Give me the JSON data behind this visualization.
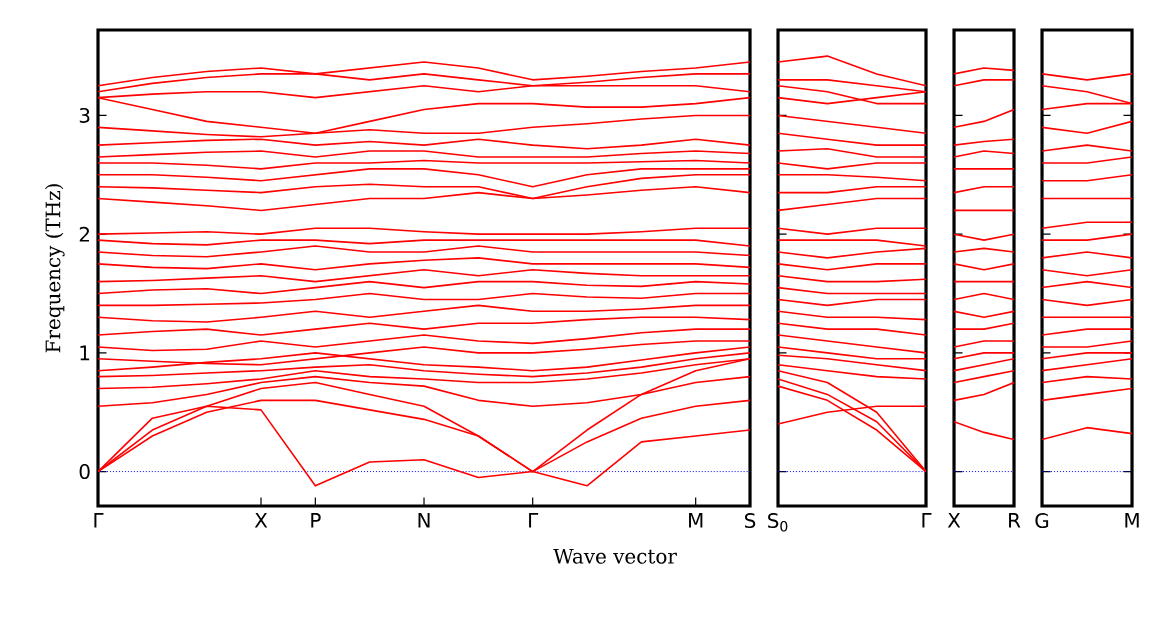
{
  "chart_data": [
    {
      "type": "line",
      "ylabel": "Frequency (THz)",
      "xlabel": "Wave vector",
      "grid": false,
      "line_style": "solid",
      "categories": [
        "Γ",
        null,
        null,
        "X",
        "P",
        null,
        "N",
        null,
        "Γ",
        null,
        null,
        "M",
        "S"
      ],
      "ylim": [
        -0.29,
        3.72
      ],
      "yticks": [
        0,
        1,
        2,
        3
      ],
      "ref_lines": [
        {
          "axis": "y",
          "value": 0,
          "color": "#0000ff",
          "line_style": "dotted"
        }
      ],
      "series": [
        {
          "color": "#ff0000",
          "values": [
            0,
            0.45,
            0.55,
            0.52,
            -0.12,
            0.08,
            0.1,
            -0.05,
            0,
            -0.12,
            0.25,
            0.3,
            0.35
          ]
        },
        {
          "color": "#ff0000",
          "values": [
            0,
            0.3,
            0.5,
            0.6,
            0.6,
            0.52,
            0.44,
            0.3,
            0,
            0.25,
            0.45,
            0.55,
            0.6
          ]
        },
        {
          "color": "#ff0000",
          "values": [
            0,
            0.35,
            0.55,
            0.7,
            0.75,
            0.65,
            0.55,
            0.3,
            0,
            0.35,
            0.65,
            0.85,
            0.95
          ]
        },
        {
          "color": "#ff0000",
          "values": [
            0.55,
            0.58,
            0.65,
            0.75,
            0.8,
            0.75,
            0.72,
            0.6,
            0.55,
            0.58,
            0.65,
            0.75,
            0.8
          ]
        },
        {
          "color": "#ff0000",
          "values": [
            0.7,
            0.71,
            0.74,
            0.78,
            0.85,
            0.8,
            0.78,
            0.75,
            0.75,
            0.78,
            0.83,
            0.9,
            0.95
          ]
        },
        {
          "color": "#ff0000",
          "values": [
            0.8,
            0.81,
            0.83,
            0.85,
            0.88,
            0.9,
            0.85,
            0.82,
            0.8,
            0.83,
            0.88,
            0.95,
            1.0
          ]
        },
        {
          "color": "#ff0000",
          "values": [
            0.85,
            0.88,
            0.92,
            0.95,
            1.0,
            0.95,
            0.9,
            0.88,
            0.85,
            0.88,
            0.94,
            1.0,
            1.05
          ]
        },
        {
          "color": "#ff0000",
          "values": [
            0.95,
            0.93,
            0.91,
            0.9,
            0.95,
            1.0,
            1.05,
            1.0,
            1.0,
            1.03,
            1.07,
            1.1,
            1.1
          ]
        },
        {
          "color": "#ff0000",
          "values": [
            1.05,
            1.02,
            1.03,
            1.1,
            1.05,
            1.1,
            1.15,
            1.1,
            1.08,
            1.12,
            1.17,
            1.2,
            1.2
          ]
        },
        {
          "color": "#ff0000",
          "values": [
            1.15,
            1.18,
            1.2,
            1.15,
            1.2,
            1.25,
            1.2,
            1.25,
            1.25,
            1.28,
            1.3,
            1.3,
            1.28
          ]
        },
        {
          "color": "#ff0000",
          "values": [
            1.3,
            1.27,
            1.26,
            1.3,
            1.35,
            1.3,
            1.35,
            1.4,
            1.35,
            1.35,
            1.37,
            1.4,
            1.4
          ]
        },
        {
          "color": "#ff0000",
          "values": [
            1.4,
            1.4,
            1.41,
            1.42,
            1.45,
            1.5,
            1.45,
            1.45,
            1.5,
            1.47,
            1.46,
            1.5,
            1.5
          ]
        },
        {
          "color": "#ff0000",
          "values": [
            1.5,
            1.53,
            1.54,
            1.5,
            1.55,
            1.6,
            1.55,
            1.6,
            1.6,
            1.57,
            1.56,
            1.6,
            1.58
          ]
        },
        {
          "color": "#ff0000",
          "values": [
            1.6,
            1.61,
            1.63,
            1.65,
            1.6,
            1.65,
            1.7,
            1.65,
            1.7,
            1.67,
            1.65,
            1.65,
            1.65
          ]
        },
        {
          "color": "#ff0000",
          "values": [
            1.75,
            1.72,
            1.71,
            1.75,
            1.7,
            1.75,
            1.78,
            1.8,
            1.75,
            1.75,
            1.75,
            1.75,
            1.72
          ]
        },
        {
          "color": "#ff0000",
          "values": [
            1.85,
            1.82,
            1.81,
            1.85,
            1.9,
            1.85,
            1.85,
            1.9,
            1.85,
            1.85,
            1.85,
            1.85,
            1.82
          ]
        },
        {
          "color": "#ff0000",
          "values": [
            1.95,
            1.92,
            1.91,
            1.95,
            1.95,
            1.92,
            1.95,
            1.95,
            1.95,
            1.95,
            1.95,
            1.95,
            1.9
          ]
        },
        {
          "color": "#ff0000",
          "values": [
            2.0,
            2.01,
            2.02,
            2.0,
            2.05,
            2.05,
            2.02,
            2.0,
            2.0,
            2.0,
            2.02,
            2.05,
            2.05
          ]
        },
        {
          "color": "#ff0000",
          "values": [
            2.3,
            2.27,
            2.24,
            2.2,
            2.25,
            2.3,
            2.3,
            2.35,
            2.3,
            2.33,
            2.37,
            2.4,
            2.35
          ]
        },
        {
          "color": "#ff0000",
          "values": [
            2.4,
            2.39,
            2.37,
            2.35,
            2.4,
            2.42,
            2.4,
            2.4,
            2.3,
            2.4,
            2.47,
            2.5,
            2.5
          ]
        },
        {
          "color": "#ff0000",
          "values": [
            2.5,
            2.5,
            2.48,
            2.45,
            2.5,
            2.55,
            2.55,
            2.5,
            2.4,
            2.5,
            2.55,
            2.55,
            2.55
          ]
        },
        {
          "color": "#ff0000",
          "values": [
            2.6,
            2.6,
            2.58,
            2.55,
            2.6,
            2.6,
            2.62,
            2.6,
            2.6,
            2.6,
            2.61,
            2.62,
            2.6
          ]
        },
        {
          "color": "#ff0000",
          "values": [
            2.65,
            2.67,
            2.69,
            2.7,
            2.65,
            2.7,
            2.7,
            2.65,
            2.65,
            2.65,
            2.68,
            2.7,
            2.68
          ]
        },
        {
          "color": "#ff0000",
          "values": [
            2.75,
            2.77,
            2.79,
            2.8,
            2.75,
            2.78,
            2.75,
            2.8,
            2.75,
            2.72,
            2.75,
            2.8,
            2.75
          ]
        },
        {
          "color": "#ff0000",
          "values": [
            2.9,
            2.87,
            2.84,
            2.82,
            2.85,
            2.88,
            2.85,
            2.85,
            2.9,
            2.93,
            2.97,
            3.0,
            3.0
          ]
        },
        {
          "color": "#ff0000",
          "values": [
            3.15,
            3.05,
            2.95,
            2.9,
            2.85,
            2.95,
            3.05,
            3.1,
            3.1,
            3.07,
            3.07,
            3.1,
            3.15
          ]
        },
        {
          "color": "#ff0000",
          "values": [
            3.15,
            3.18,
            3.2,
            3.2,
            3.15,
            3.2,
            3.25,
            3.2,
            3.25,
            3.25,
            3.25,
            3.25,
            3.2
          ]
        },
        {
          "color": "#ff0000",
          "values": [
            3.2,
            3.27,
            3.32,
            3.35,
            3.35,
            3.3,
            3.35,
            3.3,
            3.25,
            3.28,
            3.32,
            3.35,
            3.35
          ]
        },
        {
          "color": "#ff0000",
          "values": [
            3.25,
            3.32,
            3.37,
            3.4,
            3.35,
            3.4,
            3.45,
            3.4,
            3.3,
            3.33,
            3.37,
            3.4,
            3.45
          ]
        }
      ]
    },
    {
      "type": "line",
      "grid": false,
      "line_style": "solid",
      "tick_labels": "x",
      "categories": [
        "S$_{0}$",
        null,
        null,
        "Γ"
      ],
      "ylim": [
        -0.29,
        3.72
      ],
      "yticks": [
        0,
        1,
        2,
        3
      ],
      "ref_lines": [
        {
          "axis": "y",
          "value": 0,
          "color": "#0000ff",
          "line_style": "dotted"
        }
      ],
      "series": [
        {
          "color": "#ff0000",
          "values": [
            0.4,
            0.5,
            0.55,
            0.55
          ]
        },
        {
          "color": "#ff0000",
          "values": [
            0.72,
            0.6,
            0.35,
            0
          ]
        },
        {
          "color": "#ff0000",
          "values": [
            0.78,
            0.65,
            0.42,
            0
          ]
        },
        {
          "color": "#ff0000",
          "values": [
            0.85,
            0.75,
            0.5,
            0
          ]
        },
        {
          "color": "#ff0000",
          "values": [
            0.9,
            0.85,
            0.8,
            0.78
          ]
        },
        {
          "color": "#ff0000",
          "values": [
            0.98,
            0.95,
            0.9,
            0.85
          ]
        },
        {
          "color": "#ff0000",
          "values": [
            1.05,
            1.0,
            0.95,
            0.95
          ]
        },
        {
          "color": "#ff0000",
          "values": [
            1.15,
            1.1,
            1.05,
            1.0
          ]
        },
        {
          "color": "#ff0000",
          "values": [
            1.25,
            1.2,
            1.2,
            1.15
          ]
        },
        {
          "color": "#ff0000",
          "values": [
            1.35,
            1.3,
            1.3,
            1.28
          ]
        },
        {
          "color": "#ff0000",
          "values": [
            1.45,
            1.4,
            1.45,
            1.45
          ]
        },
        {
          "color": "#ff0000",
          "values": [
            1.55,
            1.5,
            1.5,
            1.5
          ]
        },
        {
          "color": "#ff0000",
          "values": [
            1.65,
            1.6,
            1.6,
            1.62
          ]
        },
        {
          "color": "#ff0000",
          "values": [
            1.75,
            1.7,
            1.75,
            1.75
          ]
        },
        {
          "color": "#ff0000",
          "values": [
            1.85,
            1.8,
            1.85,
            1.88
          ]
        },
        {
          "color": "#ff0000",
          "values": [
            1.95,
            1.95,
            1.95,
            1.9
          ]
        },
        {
          "color": "#ff0000",
          "values": [
            2.05,
            2.0,
            2.05,
            2.05
          ]
        },
        {
          "color": "#ff0000",
          "values": [
            2.2,
            2.25,
            2.3,
            2.3
          ]
        },
        {
          "color": "#ff0000",
          "values": [
            2.35,
            2.35,
            2.4,
            2.4
          ]
        },
        {
          "color": "#ff0000",
          "values": [
            2.5,
            2.5,
            2.48,
            2.45
          ]
        },
        {
          "color": "#ff0000",
          "values": [
            2.6,
            2.55,
            2.6,
            2.6
          ]
        },
        {
          "color": "#ff0000",
          "values": [
            2.7,
            2.72,
            2.65,
            2.65
          ]
        },
        {
          "color": "#ff0000",
          "values": [
            2.85,
            2.8,
            2.75,
            2.75
          ]
        },
        {
          "color": "#ff0000",
          "values": [
            3.0,
            2.95,
            2.9,
            2.85
          ]
        },
        {
          "color": "#ff0000",
          "values": [
            3.15,
            3.1,
            3.15,
            3.2
          ]
        },
        {
          "color": "#ff0000",
          "values": [
            3.25,
            3.2,
            3.1,
            3.1
          ]
        },
        {
          "color": "#ff0000",
          "values": [
            3.3,
            3.3,
            3.25,
            3.2
          ]
        },
        {
          "color": "#ff0000",
          "values": [
            3.45,
            3.5,
            3.35,
            3.25
          ]
        }
      ]
    },
    {
      "type": "line",
      "grid": false,
      "line_style": "solid",
      "tick_labels": "x",
      "categories": [
        "X",
        null,
        "R"
      ],
      "ylim": [
        -0.29,
        3.72
      ],
      "yticks": [
        0,
        1,
        2,
        3
      ],
      "ref_lines": [
        {
          "axis": "y",
          "value": 0,
          "color": "#0000ff",
          "line_style": "dotted"
        }
      ],
      "series": [
        {
          "color": "#ff0000",
          "values": [
            0.42,
            0.33,
            0.27
          ]
        },
        {
          "color": "#ff0000",
          "values": [
            0.6,
            0.65,
            0.75
          ]
        },
        {
          "color": "#ff0000",
          "values": [
            0.75,
            0.8,
            0.85
          ]
        },
        {
          "color": "#ff0000",
          "values": [
            0.85,
            0.9,
            0.95
          ]
        },
        {
          "color": "#ff0000",
          "values": [
            0.95,
            1.0,
            1.0
          ]
        },
        {
          "color": "#ff0000",
          "values": [
            1.05,
            1.1,
            1.1
          ]
        },
        {
          "color": "#ff0000",
          "values": [
            1.2,
            1.2,
            1.25
          ]
        },
        {
          "color": "#ff0000",
          "values": [
            1.35,
            1.3,
            1.35
          ]
        },
        {
          "color": "#ff0000",
          "values": [
            1.45,
            1.5,
            1.45
          ]
        },
        {
          "color": "#ff0000",
          "values": [
            1.6,
            1.6,
            1.6
          ]
        },
        {
          "color": "#ff0000",
          "values": [
            1.75,
            1.7,
            1.75
          ]
        },
        {
          "color": "#ff0000",
          "values": [
            1.85,
            1.88,
            1.85
          ]
        },
        {
          "color": "#ff0000",
          "values": [
            2.0,
            1.95,
            2.0
          ]
        },
        {
          "color": "#ff0000",
          "values": [
            2.2,
            2.2,
            2.2
          ]
        },
        {
          "color": "#ff0000",
          "values": [
            2.35,
            2.4,
            2.4
          ]
        },
        {
          "color": "#ff0000",
          "values": [
            2.55,
            2.55,
            2.55
          ]
        },
        {
          "color": "#ff0000",
          "values": [
            2.65,
            2.7,
            2.68
          ]
        },
        {
          "color": "#ff0000",
          "values": [
            2.75,
            2.78,
            2.8
          ]
        },
        {
          "color": "#ff0000",
          "values": [
            2.9,
            2.95,
            3.05
          ]
        },
        {
          "color": "#ff0000",
          "values": [
            3.25,
            3.3,
            3.3
          ]
        },
        {
          "color": "#ff0000",
          "values": [
            3.35,
            3.4,
            3.38
          ]
        }
      ]
    },
    {
      "type": "line",
      "grid": false,
      "line_style": "solid",
      "tick_labels": "x",
      "categories": [
        "G",
        null,
        "M"
      ],
      "ylim": [
        -0.29,
        3.72
      ],
      "yticks": [
        0,
        1,
        2,
        3
      ],
      "ref_lines": [
        {
          "axis": "y",
          "value": 0,
          "color": "#0000ff",
          "line_style": "dotted"
        }
      ],
      "series": [
        {
          "color": "#ff0000",
          "values": [
            0.27,
            0.37,
            0.32
          ]
        },
        {
          "color": "#ff0000",
          "values": [
            0.6,
            0.65,
            0.7
          ]
        },
        {
          "color": "#ff0000",
          "values": [
            0.75,
            0.8,
            0.78
          ]
        },
        {
          "color": "#ff0000",
          "values": [
            0.85,
            0.9,
            0.95
          ]
        },
        {
          "color": "#ff0000",
          "values": [
            0.95,
            1.0,
            1.0
          ]
        },
        {
          "color": "#ff0000",
          "values": [
            1.05,
            1.05,
            1.1
          ]
        },
        {
          "color": "#ff0000",
          "values": [
            1.15,
            1.2,
            1.2
          ]
        },
        {
          "color": "#ff0000",
          "values": [
            1.3,
            1.3,
            1.3
          ]
        },
        {
          "color": "#ff0000",
          "values": [
            1.45,
            1.4,
            1.45
          ]
        },
        {
          "color": "#ff0000",
          "values": [
            1.55,
            1.6,
            1.55
          ]
        },
        {
          "color": "#ff0000",
          "values": [
            1.7,
            1.65,
            1.7
          ]
        },
        {
          "color": "#ff0000",
          "values": [
            1.8,
            1.85,
            1.8
          ]
        },
        {
          "color": "#ff0000",
          "values": [
            1.95,
            1.95,
            2.0
          ]
        },
        {
          "color": "#ff0000",
          "values": [
            2.05,
            2.1,
            2.1
          ]
        },
        {
          "color": "#ff0000",
          "values": [
            2.3,
            2.3,
            2.3
          ]
        },
        {
          "color": "#ff0000",
          "values": [
            2.45,
            2.45,
            2.5
          ]
        },
        {
          "color": "#ff0000",
          "values": [
            2.6,
            2.6,
            2.65
          ]
        },
        {
          "color": "#ff0000",
          "values": [
            2.7,
            2.75,
            2.7
          ]
        },
        {
          "color": "#ff0000",
          "values": [
            2.9,
            2.85,
            2.95
          ]
        },
        {
          "color": "#ff0000",
          "values": [
            3.05,
            3.1,
            3.1
          ]
        },
        {
          "color": "#ff0000",
          "values": [
            3.25,
            3.2,
            3.1
          ]
        },
        {
          "color": "#ff0000",
          "values": [
            3.35,
            3.3,
            3.35
          ]
        }
      ]
    }
  ]
}
